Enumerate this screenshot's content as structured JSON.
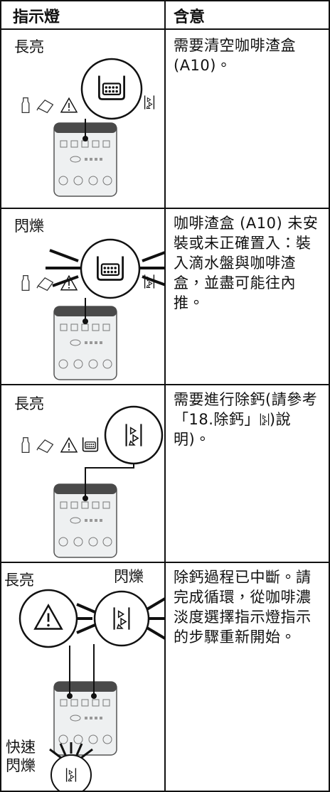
{
  "table": {
    "header": [
      "指示燈",
      "含意"
    ],
    "rows": [
      {
        "indicator": [
          "長亮"
        ],
        "meaning": [
          "需要清空咖啡渣盒(A10)。"
        ]
      },
      {
        "indicator": [
          "閃爍"
        ],
        "meaning": [
          "咖啡渣盒 (A10) 未安裝或未正確置入：裝入滴水盤與咖啡渣盒，並盡可能往內推。"
        ]
      },
      {
        "indicator": [
          "長亮"
        ],
        "meaning": [
          "需要進行除鈣(請參考「18.除鈣」",
          ")說明)。"
        ]
      },
      {
        "indicator": [
          "長亮",
          "閃爍",
          "快速閃爍"
        ],
        "meaning": [
          "除鈣過程已中斷。請完成循環，從咖啡濃淡度選擇指示燈指示的步驟重新開始。"
        ]
      }
    ]
  }
}
